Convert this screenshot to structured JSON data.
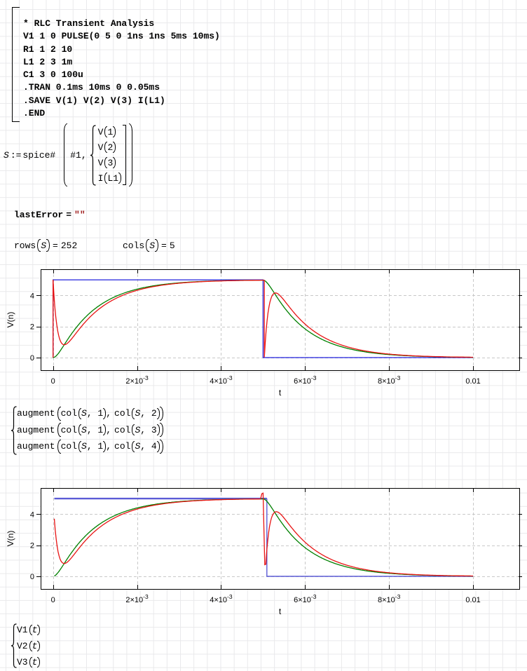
{
  "code_region": {
    "lines": [
      "* RLC Transient Analysis",
      "V1 1 0 PULSE(0 5 0 1ns 1ns 5ms 10ms)",
      "R1 1 2 10",
      "L1 2 3 1m",
      "C1 3 0 100u",
      ".TRAN 0.1ms 10ms 0 0.05ms",
      ".SAVE V(1) V(2) V(3) I(L1)",
      ".END"
    ]
  },
  "spice_assign": {
    "lhs": "S",
    "op": ":=",
    "fn": "spice#",
    "arg1": "#1,",
    "vector": [
      {
        "name": "V",
        "arg": "1"
      },
      {
        "name": "V",
        "arg": "2"
      },
      {
        "name": "V",
        "arg": "3"
      },
      {
        "name": "I",
        "arg": "L1"
      }
    ]
  },
  "last_error": {
    "label": "lastError",
    "eq": "=",
    "value": "\"\""
  },
  "rows_expr": {
    "fn": "rows",
    "var": "S",
    "eq": "=",
    "val": "252"
  },
  "cols_expr": {
    "fn": "cols",
    "var": "S",
    "eq": "=",
    "val": "5"
  },
  "augment_block": {
    "rows": [
      {
        "fn": "augment",
        "col_fn": "col",
        "a_var": "S",
        "a_idx": ", 1",
        "comma": ",",
        "b_var": "S",
        "b_idx": ", 2"
      },
      {
        "fn": "augment",
        "col_fn": "col",
        "a_var": "S",
        "a_idx": ", 1",
        "comma": ",",
        "b_var": "S",
        "b_idx": ", 3"
      },
      {
        "fn": "augment",
        "col_fn": "col",
        "a_var": "S",
        "a_idx": ", 1",
        "comma": ",",
        "b_var": "S",
        "b_idx": ", 4"
      }
    ]
  },
  "v_functions": [
    {
      "name": "V1",
      "arg": "t"
    },
    {
      "name": "V2",
      "arg": "t"
    },
    {
      "name": "V3",
      "arg": "t"
    }
  ],
  "chart_data": [
    {
      "type": "line",
      "xlabel": "t",
      "ylabel": "V(n)",
      "xlim": [
        -0.000295,
        0.0111
      ],
      "ylim": [
        -0.81,
        5.68
      ],
      "grid": true,
      "xticks": [
        {
          "v": 0,
          "m": "0",
          "e": ""
        },
        {
          "v": 0.002,
          "m": "2×10",
          "e": "-3"
        },
        {
          "v": 0.004,
          "m": "4×10",
          "e": "-3"
        },
        {
          "v": 0.006,
          "m": "6×10",
          "e": "-3"
        },
        {
          "v": 0.008,
          "m": "8×10",
          "e": "-3"
        },
        {
          "v": 0.01,
          "m": "0.01",
          "e": ""
        }
      ],
      "yticks": [
        {
          "v": 0,
          "label": "0"
        },
        {
          "v": 2,
          "label": "2"
        },
        {
          "v": 4,
          "label": "4"
        }
      ],
      "model": {
        "amp": 5,
        "s1": -1127,
        "s2": -8873,
        "A": 1.1455,
        "B": 0.1455,
        "k_rise": 6.455,
        "k_fall": 6.43,
        "vc5": 4.98,
        "t_switch": 0.005
      },
      "series": [
        {
          "name": "V(1)",
          "color": "#2222dd",
          "width": 1.3,
          "segments": [
            {
              "pts": [
                [
                  0,
                  0
                ],
                [
                  0,
                  5
                ],
                [
                  0.005,
                  5
                ],
                [
                  0.005,
                  0
                ],
                [
                  0.01,
                  0
                ]
              ]
            }
          ]
        },
        {
          "name": "V(3)",
          "color": "#008000",
          "width": 1.3,
          "segments": [
            {
              "fn": "vc_rise",
              "t0": 0,
              "t1": 0.005
            },
            {
              "fn": "vc_fall",
              "t0": 0.005,
              "t1": 0.01
            }
          ]
        },
        {
          "name": "V(2)",
          "color": "#e81414",
          "width": 1.3,
          "segments": [
            {
              "pts": [
                [
                  0,
                  0
                ],
                [
                  0,
                  5
                ]
              ]
            },
            {
              "fn": "v2_rise",
              "t0": 2e-05,
              "t1": 0.005
            },
            {
              "pts": [
                [
                  0.00503,
                  4.97
                ],
                [
                  0.00503,
                  0.02
                ]
              ]
            },
            {
              "fn": "v2_fall",
              "t0": 0.00505,
              "t1": 0.01,
              "ts": 0.00503
            }
          ]
        }
      ]
    },
    {
      "type": "line",
      "xlabel": "t",
      "ylabel": "V(n)",
      "xlim": [
        -0.000295,
        0.0111
      ],
      "ylim": [
        -0.81,
        5.68
      ],
      "grid": true,
      "xticks": [
        {
          "v": 0,
          "m": "0",
          "e": ""
        },
        {
          "v": 0.002,
          "m": "2×10",
          "e": "-3"
        },
        {
          "v": 0.004,
          "m": "4×10",
          "e": "-3"
        },
        {
          "v": 0.006,
          "m": "6×10",
          "e": "-3"
        },
        {
          "v": 0.008,
          "m": "8×10",
          "e": "-3"
        },
        {
          "v": 0.01,
          "m": "0.01",
          "e": ""
        }
      ],
      "yticks": [
        {
          "v": 0,
          "label": "0"
        },
        {
          "v": 2,
          "label": "2"
        },
        {
          "v": 4,
          "label": "4"
        }
      ],
      "model": {
        "amp": 5,
        "s1": -1127,
        "s2": -8873,
        "A": 1.1455,
        "B": 0.1455,
        "k_rise": 6.455,
        "k_fall": 6.43,
        "vc5": 4.98,
        "t_switch": 0.005
      },
      "series": [
        {
          "name": "V1(t)",
          "color": "#5b5bd6",
          "width": 2.4,
          "segments": [
            {
              "pts": [
                [
                  3e-05,
                  5
                ],
                [
                  0.00509,
                  5
                ]
              ]
            }
          ]
        },
        {
          "name": "V1(t)",
          "color": "#5b5bd6",
          "width": 1.4,
          "segments": [
            {
              "pts": [
                [
                  0.00509,
                  5
                ],
                [
                  0.00509,
                  0
                ],
                [
                  0.01,
                  0
                ]
              ]
            }
          ]
        },
        {
          "name": "V3(t)",
          "color": "#008000",
          "width": 1.3,
          "segments": [
            {
              "fn": "vc_rise",
              "t0": 3e-05,
              "t1": 0.005
            },
            {
              "fn": "vc_fall",
              "t0": 0.005,
              "t1": 0.01
            }
          ]
        },
        {
          "name": "V2(t)",
          "color": "#e81414",
          "width": 1.3,
          "segments": [
            {
              "fn": "v2_rise",
              "t0": 3e-05,
              "t1": 0.00494
            },
            {
              "pts": [
                [
                  0.00497,
                  5.31
                ],
                [
                  0.005,
                  5.35
                ],
                [
                  0.00504,
                  0.75
                ]
              ]
            },
            {
              "fn": "v2_fall",
              "t0": 0.005065,
              "t1": 0.01,
              "ts": 0.005048
            }
          ]
        }
      ]
    }
  ]
}
